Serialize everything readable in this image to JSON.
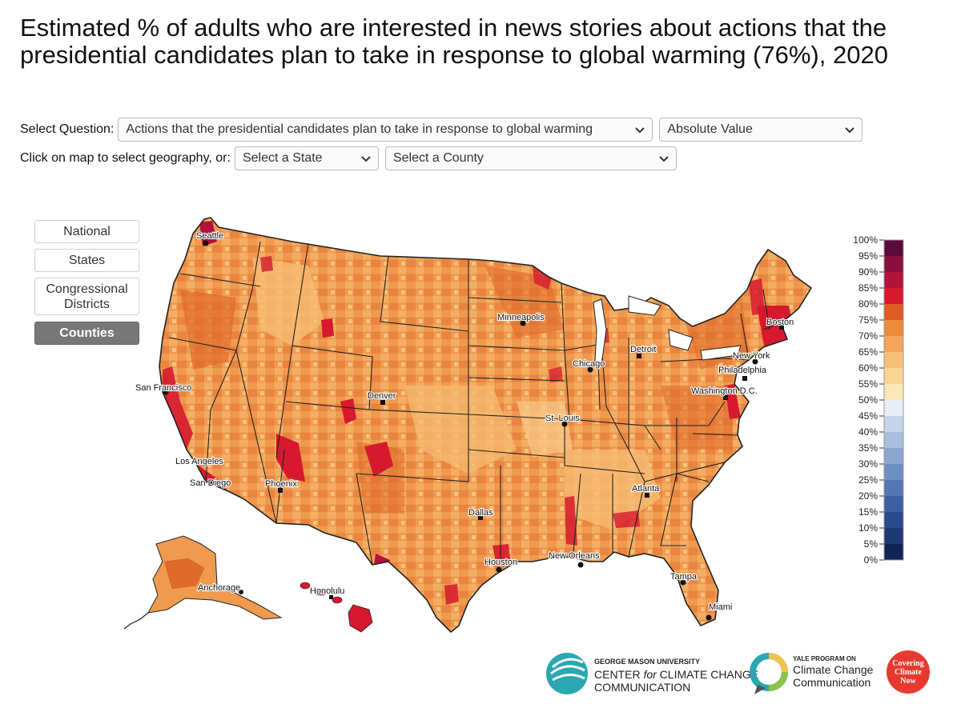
{
  "title": "Estimated % of adults who are interested in news stories about actions that the presidential candidates plan to take in response to global warming (76%), 2020",
  "controls": {
    "question_label": "Select Question:",
    "question_value": "Actions that the presidential candidates plan to take in response to global warming",
    "display_value": "Absolute Value",
    "geo_label": "Click on map to select geography, or:",
    "state_value": "Select a State",
    "county_value": "Select a County"
  },
  "geography_buttons": [
    {
      "label": "National",
      "active": false
    },
    {
      "label": "States",
      "active": false
    },
    {
      "label": "Congressional Districts",
      "active": false
    },
    {
      "label": "Counties",
      "active": true
    }
  ],
  "legend": {
    "ticks": [
      "100%",
      "95%",
      "90%",
      "85%",
      "80%",
      "75%",
      "70%",
      "65%",
      "60%",
      "55%",
      "50%",
      "45%",
      "40%",
      "35%",
      "30%",
      "25%",
      "20%",
      "15%",
      "10%",
      "5%",
      "0%"
    ],
    "colors": [
      "#5a0a3c",
      "#8a0f3e",
      "#b3123d",
      "#d7192f",
      "#e05a24",
      "#ee8a3a",
      "#f5a55b",
      "#f8bf78",
      "#fbd594",
      "#fde7b6",
      "#e6edf6",
      "#c5d5e9",
      "#a8c0dd",
      "#8ba7cf",
      "#6e8ec0",
      "#5477b1",
      "#3c60a0",
      "#2a4b8b",
      "#1d3873",
      "#0f2457"
    ]
  },
  "cities": [
    "Seattle",
    "San Francisco",
    "Los Angeles",
    "San Diego",
    "Phoenix",
    "Denver",
    "Minneapolis",
    "Chicago",
    "Detroit",
    "St. Louis",
    "Dallas",
    "Houston",
    "New Orleans",
    "Atlanta",
    "Tampa",
    "Miami",
    "Washington D.C.",
    "Philadelphia",
    "New York",
    "Boston",
    "Anchorage",
    "Honolulu"
  ],
  "map_colors": {
    "base": "#f09a4e",
    "light": "#f6bb73",
    "dark": "#e06a2a",
    "hot": "#d6192f",
    "border": "#222222"
  },
  "logos": {
    "gmu_top": "GEORGE MASON UNIVERSITY",
    "gmu_mid_a": "CENTER ",
    "gmu_mid_for": "for",
    "gmu_mid_b": " CLIMATE CHANGE",
    "gmu_bottom": "COMMUNICATION",
    "yale_top": "YALE PROGRAM ON",
    "yale_line1": "Climate Change",
    "yale_line2": "Communication",
    "ccn_line1": "Covering",
    "ccn_line2": "Climate",
    "ccn_line3": "Now"
  }
}
